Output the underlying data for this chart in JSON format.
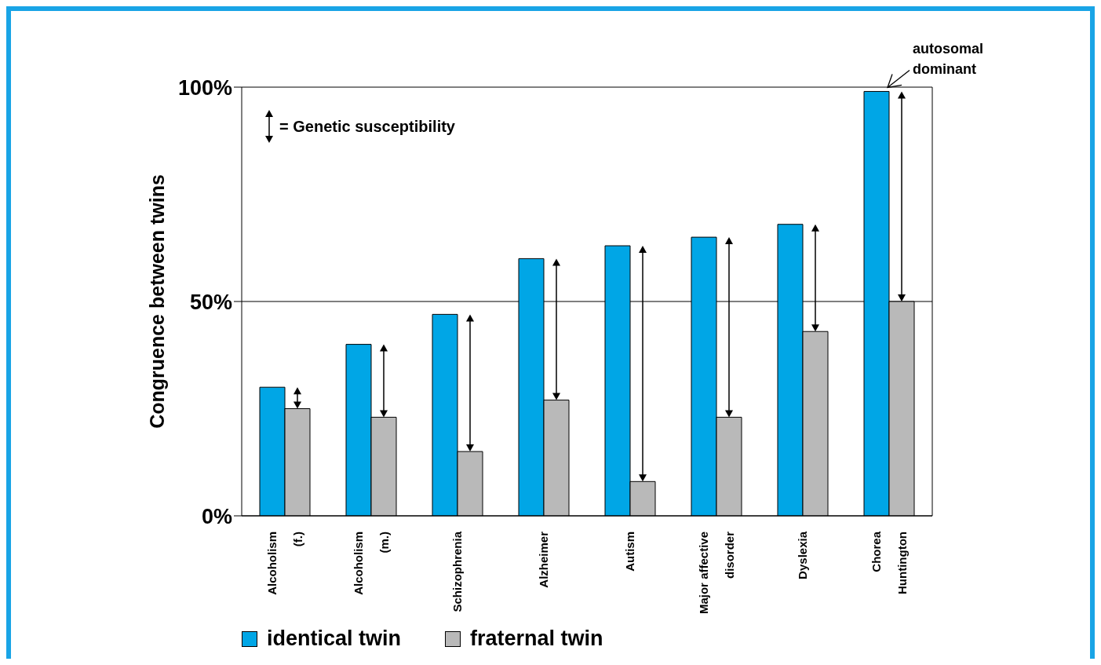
{
  "chart_data": {
    "type": "bar",
    "ylabel": "Congruence between twins",
    "categories": [
      "Alcoholism\n(f.)",
      "Alcoholism\n(m.)",
      "Schizophrenia",
      "Alzheimer",
      "Autism",
      "Major affective\ndisorder",
      "Dyslexia",
      "Chorea\nHuntington"
    ],
    "series": [
      {
        "name": "identical twin",
        "color": "#00a6e6",
        "values": [
          30,
          40,
          47,
          60,
          63,
          65,
          68,
          99
        ]
      },
      {
        "name": "fraternal twin",
        "color": "#b9b9b9",
        "values": [
          25,
          23,
          15,
          27,
          8,
          23,
          43,
          50
        ]
      }
    ],
    "ylim": [
      0,
      100
    ],
    "yticks": [
      {
        "value": 0,
        "label": "0%"
      },
      {
        "value": 50,
        "label": "50%"
      },
      {
        "value": 100,
        "label": "100%"
      }
    ],
    "grid": "y",
    "legend": "bottom left",
    "annotations": [
      "= Genetic susceptibility",
      {
        "text": "autosomal dominant",
        "x": "Chorea\nHuntington",
        "y": 99
      }
    ]
  }
}
